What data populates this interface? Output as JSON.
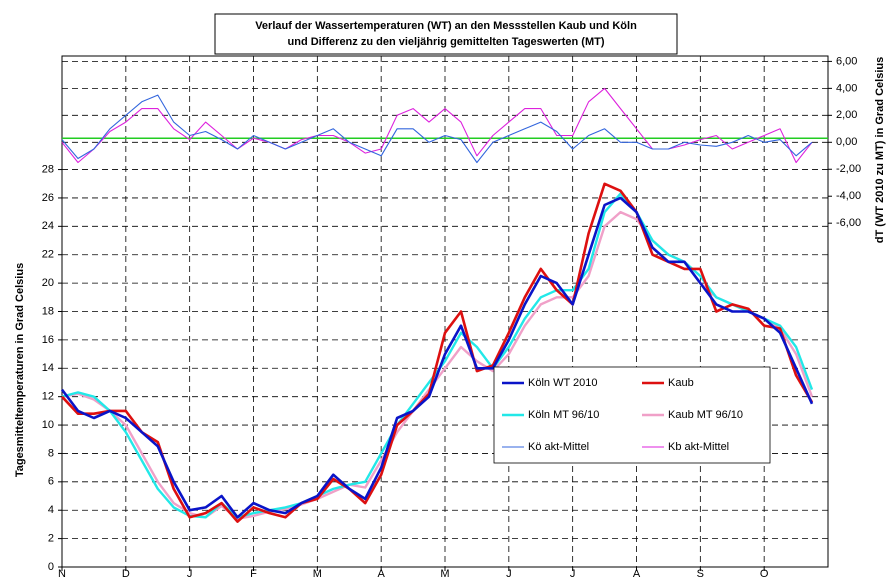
{
  "chart_data": {
    "type": "line",
    "title_lines": [
      "Verlauf der Wassertemperaturen (WT) an den Messstellen Kaub und Köln",
      "und Differenz zu den vieljährig gemittelten Tageswerten (MT)"
    ],
    "y_label": "Tagesmitteltemperaturen in Grad Celsius",
    "y2_label": "dT (WT 2010 zu MT) in Grad Celsius",
    "categories": [
      "N",
      null,
      null,
      null,
      "D",
      null,
      null,
      null,
      "J",
      null,
      null,
      null,
      "F",
      null,
      null,
      null,
      "M",
      null,
      null,
      null,
      "A",
      null,
      null,
      null,
      "M",
      null,
      null,
      null,
      "J",
      null,
      null,
      null,
      "J",
      null,
      null,
      null,
      "A",
      null,
      null,
      null,
      "S",
      null,
      null,
      null,
      "O",
      null,
      null,
      null
    ],
    "ylim": [
      0,
      36
    ],
    "yticks": [
      0,
      2,
      4,
      6,
      8,
      10,
      12,
      14,
      16,
      18,
      20,
      22,
      24,
      26,
      28
    ],
    "y2lim": [
      -31.5,
      6.4
    ],
    "y2ticks": [
      {
        "value": 6,
        "label": "6,00"
      },
      {
        "value": 4,
        "label": "4,00"
      },
      {
        "value": 2,
        "label": "2,00"
      },
      {
        "value": 0,
        "label": "0,00"
      },
      {
        "value": -2,
        "label": "-2,00"
      },
      {
        "value": -4,
        "label": "-4,00"
      },
      {
        "value": -6,
        "label": "-6,00"
      }
    ],
    "grid": true,
    "legend": "inside",
    "reference_line": {
      "axis": "y2",
      "value": 0.3,
      "color": "#22cc22"
    },
    "series": [
      {
        "name": "Köln WT 2010",
        "color": "#0a14c8",
        "line_width": 2.6,
        "values": [
          12.5,
          11.0,
          10.5,
          11.0,
          10.5,
          9.5,
          8.5,
          6.0,
          4.0,
          4.2,
          5.0,
          3.5,
          4.5,
          4.0,
          3.8,
          4.5,
          5.0,
          6.5,
          5.5,
          4.8,
          7.0,
          10.5,
          11.0,
          12.0,
          15.0,
          17.0,
          14.0,
          14.0,
          16.0,
          18.5,
          20.5,
          20.0,
          18.5,
          22.0,
          25.5,
          26.0,
          25.0,
          22.5,
          21.5,
          21.5,
          20.0,
          18.5,
          18.0,
          18.0,
          17.5,
          16.5,
          14.0,
          11.5
        ]
      },
      {
        "name": "Kaub",
        "color": "#dd1010",
        "line_width": 2.6,
        "values": [
          12.0,
          10.8,
          10.8,
          11.0,
          11.0,
          9.5,
          8.8,
          5.5,
          3.5,
          3.8,
          4.5,
          3.2,
          4.2,
          3.8,
          3.5,
          4.5,
          4.8,
          6.2,
          5.5,
          4.5,
          6.5,
          10.0,
          11.0,
          12.2,
          16.5,
          18.0,
          13.8,
          14.2,
          16.5,
          19.0,
          21.0,
          19.5,
          18.5,
          23.5,
          27.0,
          26.5,
          25.0,
          22.0,
          21.5,
          21.0,
          21.0,
          18.0,
          18.5,
          18.2,
          17.0,
          16.8,
          13.5,
          11.6
        ]
      },
      {
        "name": "Köln MT 96/10",
        "color": "#22e8e8",
        "line_width": 2.4,
        "values": [
          12.0,
          12.3,
          12.0,
          11.0,
          9.5,
          7.5,
          5.5,
          4.2,
          3.6,
          3.5,
          4.5,
          3.5,
          3.8,
          4.0,
          4.2,
          4.5,
          5.0,
          5.5,
          5.8,
          6.0,
          8.0,
          10.0,
          11.5,
          13.0,
          14.5,
          16.5,
          15.5,
          14.0,
          15.5,
          17.5,
          19.0,
          19.5,
          19.5,
          21.0,
          25.0,
          26.3,
          25.0,
          23.0,
          22.0,
          21.5,
          20.5,
          19.0,
          18.5,
          18.0,
          17.5,
          17.0,
          15.5,
          12.5
        ]
      },
      {
        "name": "Kaub MT 96/10",
        "color": "#f0a0c8",
        "line_width": 2.4,
        "values": [
          12.0,
          12.2,
          11.8,
          11.0,
          10.0,
          8.0,
          6.0,
          4.5,
          3.8,
          3.5,
          4.3,
          3.4,
          3.6,
          3.9,
          4.1,
          4.4,
          4.8,
          5.3,
          5.8,
          5.6,
          7.5,
          9.5,
          11.0,
          12.5,
          14.0,
          15.5,
          14.5,
          13.8,
          15.0,
          17.0,
          18.5,
          19.0,
          19.0,
          20.5,
          24.0,
          25.0,
          24.5,
          23.0,
          22.0,
          21.5,
          20.0,
          19.0,
          18.5,
          18.0,
          17.5,
          16.8,
          15.0,
          12.0
        ]
      },
      {
        "name": "Kö akt-Mittel",
        "color": "#3366dd",
        "line_width": 1.1,
        "axis": "y2",
        "values": [
          0.2,
          -1.2,
          -0.5,
          1.0,
          2.0,
          3.0,
          3.5,
          1.5,
          0.5,
          0.8,
          0.2,
          -0.5,
          0.5,
          0.0,
          -0.5,
          0.0,
          0.5,
          1.0,
          0.0,
          -0.5,
          -1.0,
          1.0,
          1.0,
          0.0,
          0.5,
          0.2,
          -1.5,
          0.0,
          0.5,
          1.0,
          1.5,
          0.8,
          -0.5,
          0.5,
          1.0,
          0.0,
          0.0,
          -0.5,
          -0.5,
          0.0,
          -0.2,
          -0.3,
          0.0,
          0.5,
          0.0,
          0.2,
          -1.0,
          0.0
        ]
      },
      {
        "name": "Kb akt-Mittel",
        "color": "#dd22dd",
        "line_width": 1.1,
        "axis": "y2",
        "values": [
          0.0,
          -1.5,
          -0.5,
          0.8,
          1.5,
          2.5,
          2.5,
          1.0,
          0.2,
          1.5,
          0.5,
          -0.5,
          0.3,
          0.0,
          -0.5,
          0.2,
          0.5,
          0.5,
          0.0,
          -0.8,
          -0.5,
          2.0,
          2.5,
          1.5,
          2.5,
          1.5,
          -1.0,
          0.5,
          1.5,
          2.5,
          2.5,
          0.5,
          0.5,
          3.0,
          4.0,
          2.5,
          1.0,
          -0.5,
          -0.5,
          -0.2,
          0.2,
          0.5,
          -0.5,
          0.0,
          0.5,
          1.0,
          -1.5,
          0.0
        ]
      }
    ]
  }
}
